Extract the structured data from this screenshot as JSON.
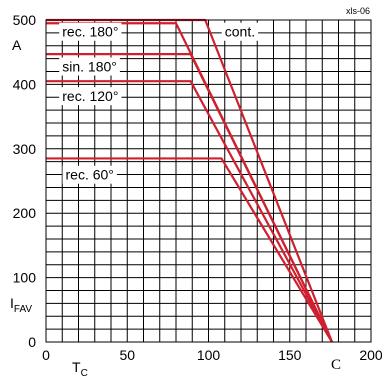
{
  "chart_data": {
    "type": "line",
    "doc_id": "xls-06",
    "xlim": [
      0,
      200
    ],
    "ylim": [
      0,
      500
    ],
    "x_ticks": [
      0,
      50,
      100,
      150,
      200
    ],
    "y_ticks": [
      0,
      100,
      200,
      300,
      400,
      500
    ],
    "x_title": "T",
    "x_title_sub": "C",
    "x_unit": "C",
    "y_title": "I",
    "y_title_sub": "FAV",
    "y_unit": "A",
    "grid": true,
    "line_color": "#d0202f",
    "series": [
      {
        "name": "cont.",
        "x": [
          0,
          98,
          176
        ],
        "y": [
          500,
          500,
          0
        ]
      },
      {
        "name": "rec. 180°",
        "x": [
          0,
          80,
          176
        ],
        "y": [
          495,
          495,
          0
        ]
      },
      {
        "name": "sin. 180°",
        "x": [
          0,
          89,
          176
        ],
        "y": [
          447,
          447,
          0
        ]
      },
      {
        "name": "rec. 120°",
        "x": [
          0,
          89,
          176
        ],
        "y": [
          405,
          405,
          0
        ]
      },
      {
        "name": "rec. 60°",
        "x": [
          0,
          108,
          176
        ],
        "y": [
          285,
          285,
          0
        ]
      }
    ]
  }
}
